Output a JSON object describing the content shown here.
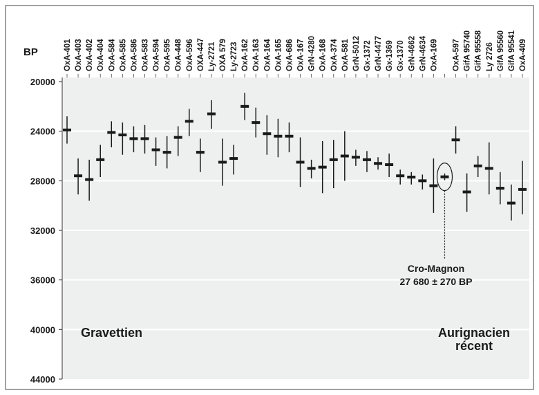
{
  "chart_data": {
    "type": "scatter",
    "ylabel": "BP",
    "yticks": [
      "20000",
      "24000",
      "28000",
      "32000",
      "36000",
      "40000",
      "44000"
    ],
    "ylim": [
      20000,
      44000
    ],
    "y_inverted": true,
    "grid": "horizontal",
    "categories": [
      "OxA-401",
      "OxA-403",
      "OxA-402",
      "OxA-404",
      "OxA-584",
      "OxA-585",
      "OxA-586",
      "OxA-583",
      "OxA-594",
      "OxA-595",
      "OxA-448",
      "OxA-596",
      "OXA-447",
      "Ly-2721",
      "OXA 579",
      "Ly-2723",
      "OxA-162",
      "OxA-163",
      "OxA-164",
      "OxA-165",
      "OxA-686",
      "OxA-167",
      "GrN-4280",
      "OxA-168",
      "OxA-374",
      "OxA-581",
      "GrN-5012",
      "Gx-1372",
      "GrN-4477",
      "Gx-1369",
      "Gx-1370",
      "GrN-4662",
      "GrN-4634",
      "OxA-169",
      "",
      "OxA-597",
      "GifA 95740",
      "GifA 95558",
      "Ly 2726",
      "GifA 95560",
      "GifA 95541",
      "OxA-409"
    ],
    "values": [
      23900,
      27600,
      27900,
      26300,
      24100,
      24300,
      24600,
      24600,
      25500,
      25700,
      24500,
      23200,
      25700,
      22600,
      26500,
      26200,
      22000,
      23300,
      24200,
      24400,
      24400,
      26500,
      27000,
      26900,
      26300,
      26000,
      26100,
      26300,
      26600,
      26700,
      27600,
      27700,
      28000,
      28400,
      27680,
      24700,
      28900,
      26800,
      27000,
      28600,
      29800,
      28700
    ],
    "error_low": [
      22800,
      26200,
      26300,
      25100,
      23200,
      23300,
      23600,
      23500,
      24500,
      24400,
      23600,
      22200,
      24600,
      21500,
      24600,
      25100,
      20900,
      22100,
      22700,
      23000,
      23300,
      24500,
      26300,
      24800,
      24700,
      24000,
      25500,
      25600,
      26100,
      25800,
      27100,
      27300,
      27500,
      26200,
      27410,
      23600,
      27400,
      26000,
      24900,
      27300,
      28300,
      26400
    ],
    "error_high": [
      25000,
      29100,
      29600,
      27700,
      25300,
      25900,
      25700,
      25800,
      26800,
      27000,
      26000,
      24400,
      27300,
      23800,
      28400,
      27500,
      23100,
      24500,
      25900,
      26100,
      25700,
      28500,
      27800,
      29000,
      28600,
      28000,
      26800,
      27300,
      27100,
      27700,
      28300,
      28300,
      28700,
      30600,
      27950,
      25800,
      30500,
      27700,
      29100,
      29900,
      31200,
      30700
    ],
    "highlight_index": 34,
    "annotation": {
      "line1": "Cro-Magnon",
      "line2": "27 680 ± 270 BP"
    },
    "region_labels": {
      "left": "Gravettien",
      "right_line1": "Aurignacien",
      "right_line2": "récent"
    }
  }
}
